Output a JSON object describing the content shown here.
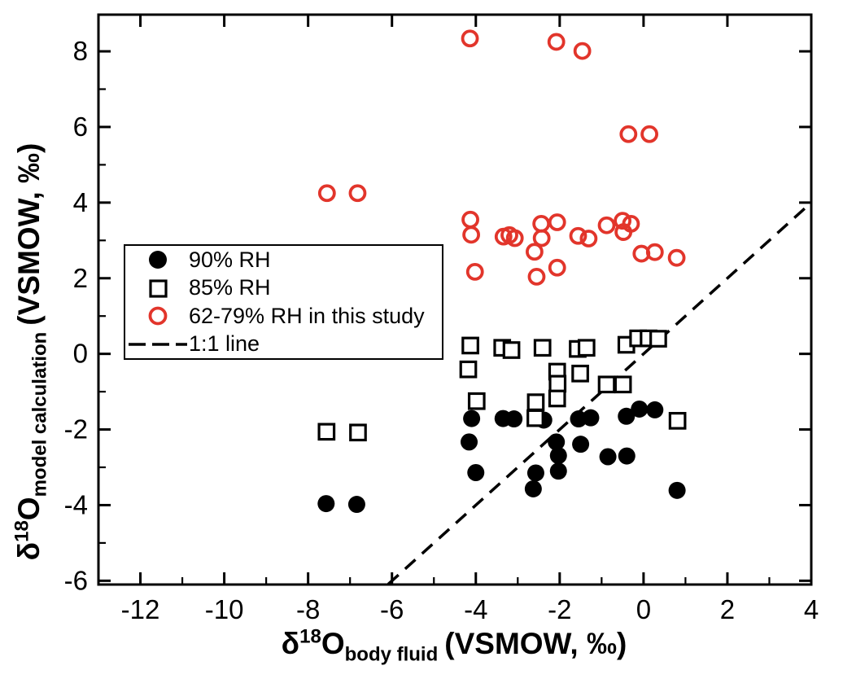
{
  "figure": {
    "background": "#ffffff"
  },
  "chart_data": {
    "type": "scatter",
    "title": "",
    "xlabel": "δ18Obody fluid (VSMOW, ‰)",
    "ylabel": "δ18Omodel calculation (VSMOW, ‰)",
    "xlabel_parts": {
      "delta": "δ",
      "sup": "18",
      "main": "O",
      "sub": "body fluid",
      "unit": "(VSMOW, ‰)"
    },
    "ylabel_parts": {
      "delta": "δ",
      "sup": "18",
      "main": "O",
      "sub": "model calculation",
      "unit": "(VSMOW, ‰)"
    },
    "xlim": [
      -13.0,
      4.0
    ],
    "ylim": [
      -6.1,
      8.97
    ],
    "x_major_ticks": [
      -12,
      -10,
      -8,
      -6,
      -4,
      -2,
      0,
      2,
      4
    ],
    "x_minor_ticks": [
      -11,
      -9,
      -7,
      -5,
      -3,
      -1,
      1,
      3
    ],
    "x_tick_labels": [
      "-12",
      "-10",
      "-8",
      "-6",
      "-4",
      "-2",
      "0",
      "2",
      "4"
    ],
    "y_major_ticks": [
      -6,
      -4,
      -2,
      0,
      2,
      4,
      6,
      8
    ],
    "y_minor_ticks": [
      -5,
      -3,
      -1,
      1,
      3,
      5,
      7
    ],
    "y_tick_labels": [
      "-6",
      "-4",
      "-2",
      "0",
      "2",
      "4",
      "6",
      "8"
    ],
    "grid": false,
    "legend_position": "upper-left-inside",
    "series": [
      {
        "name": "90% RH",
        "marker": "filled-circle",
        "color": "#000000",
        "points": [
          [
            -7.57,
            -3.96
          ],
          [
            -6.84,
            -3.98
          ],
          [
            -4.16,
            -2.33
          ],
          [
            -4.1,
            -1.71
          ],
          [
            -4.0,
            -3.14
          ],
          [
            -3.35,
            -1.71
          ],
          [
            -3.09,
            -1.72
          ],
          [
            -2.63,
            -3.57
          ],
          [
            -2.57,
            -3.15
          ],
          [
            -2.38,
            -1.75
          ],
          [
            -2.08,
            -2.33
          ],
          [
            -2.03,
            -2.69
          ],
          [
            -2.03,
            -3.1
          ],
          [
            -1.55,
            -1.72
          ],
          [
            -1.5,
            -2.39
          ],
          [
            -1.26,
            -1.69
          ],
          [
            -0.85,
            -2.72
          ],
          [
            -0.41,
            -1.65
          ],
          [
            -0.4,
            -2.7
          ],
          [
            -0.1,
            -1.46
          ],
          [
            0.27,
            -1.48
          ],
          [
            0.8,
            -3.61
          ]
        ]
      },
      {
        "name": "85% RH",
        "marker": "open-square",
        "color": "#000000",
        "points": [
          [
            -7.56,
            -2.06
          ],
          [
            -6.81,
            -2.08
          ],
          [
            -4.18,
            -0.41
          ],
          [
            -4.13,
            0.22
          ],
          [
            -3.98,
            -1.25
          ],
          [
            -3.37,
            0.16
          ],
          [
            -3.15,
            0.1
          ],
          [
            -2.58,
            -1.7
          ],
          [
            -2.57,
            -1.28
          ],
          [
            -2.41,
            0.16
          ],
          [
            -2.06,
            -0.47
          ],
          [
            -2.05,
            -0.79
          ],
          [
            -2.06,
            -1.18
          ],
          [
            -1.57,
            0.13
          ],
          [
            -1.51,
            -0.52
          ],
          [
            -1.36,
            0.16
          ],
          [
            -0.88,
            -0.81
          ],
          [
            -0.49,
            -0.81
          ],
          [
            -0.41,
            0.24
          ],
          [
            -0.13,
            0.41
          ],
          [
            0.12,
            0.41
          ],
          [
            0.35,
            0.4
          ],
          [
            0.81,
            -1.77
          ]
        ]
      },
      {
        "name": "62-79% RH in this study",
        "marker": "open-circle",
        "color": "#e2352b",
        "points": [
          [
            -7.55,
            4.25
          ],
          [
            -6.82,
            4.25
          ],
          [
            -4.14,
            8.34
          ],
          [
            -2.08,
            8.25
          ],
          [
            -1.46,
            8.01
          ],
          [
            -0.36,
            5.81
          ],
          [
            0.14,
            5.81
          ],
          [
            -4.13,
            3.55
          ],
          [
            -4.11,
            3.15
          ],
          [
            -4.02,
            2.17
          ],
          [
            -3.34,
            3.1
          ],
          [
            -3.2,
            3.14
          ],
          [
            -3.07,
            3.06
          ],
          [
            -2.6,
            2.7
          ],
          [
            -2.55,
            2.04
          ],
          [
            -2.44,
            3.44
          ],
          [
            -2.43,
            3.06
          ],
          [
            -2.06,
            3.48
          ],
          [
            -2.06,
            2.28
          ],
          [
            -1.56,
            3.12
          ],
          [
            -1.31,
            3.05
          ],
          [
            -0.88,
            3.4
          ],
          [
            -0.5,
            3.52
          ],
          [
            -0.48,
            3.22
          ],
          [
            -0.3,
            3.44
          ],
          [
            -0.05,
            2.65
          ],
          [
            0.27,
            2.69
          ],
          [
            0.79,
            2.54
          ]
        ]
      }
    ],
    "reference_line": {
      "name": "1:1 line",
      "style": "dashed",
      "color": "#000000",
      "x": [
        -6.09,
        4.0
      ],
      "y": [
        -6.09,
        4.0
      ]
    }
  },
  "legend": {
    "items": [
      {
        "label": "90% RH",
        "marker": "filled-circle",
        "color": "#000000"
      },
      {
        "label": "85% RH",
        "marker": "open-square",
        "color": "#000000"
      },
      {
        "label": "62-79% RH in this study",
        "marker": "open-circle",
        "color": "#e2352b"
      },
      {
        "label": "1:1 line",
        "marker": "dashed-line",
        "color": "#000000"
      }
    ]
  }
}
